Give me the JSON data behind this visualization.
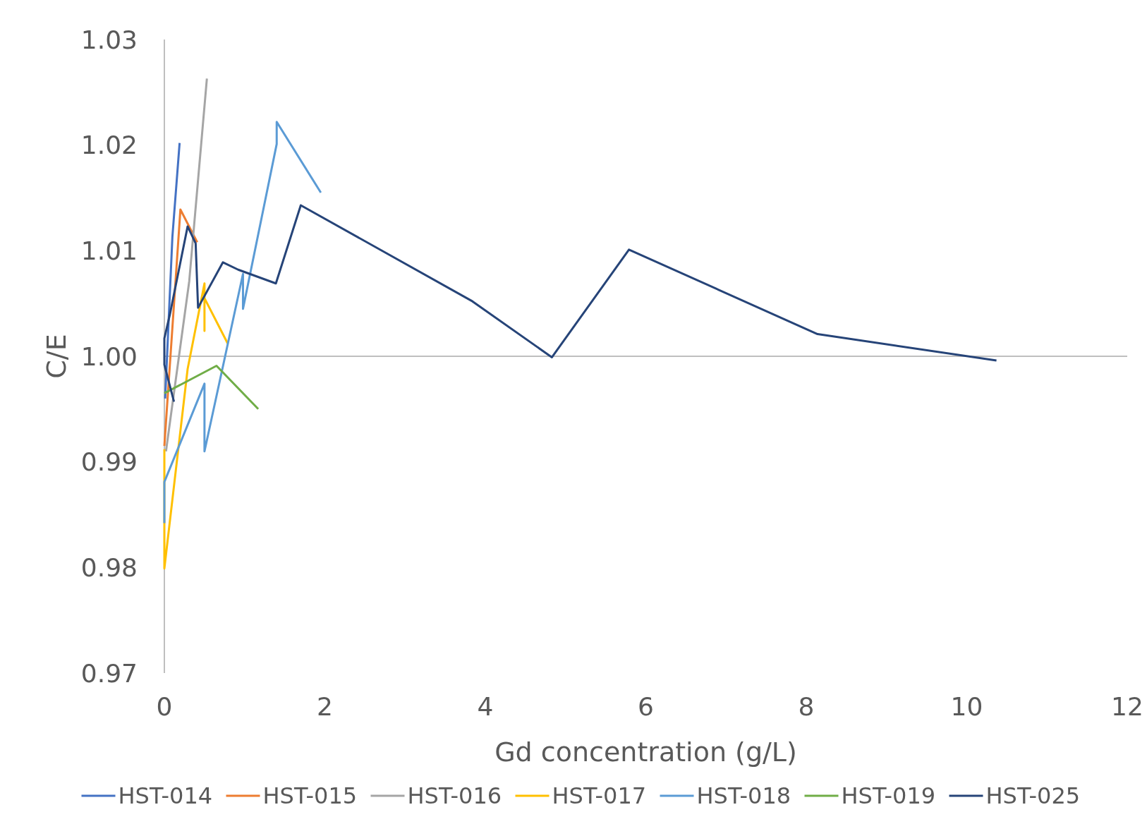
{
  "chart_data": {
    "type": "line",
    "xlabel": "Gd concentration (g/L)",
    "ylabel": "C/E",
    "xlim": [
      0,
      12
    ],
    "xticks": [
      0,
      2,
      4,
      6,
      8,
      10,
      12
    ],
    "ylim": [
      0.97,
      1.03
    ],
    "yticks": [
      {
        "value": 0.97,
        "label": "0.97"
      },
      {
        "value": 0.98,
        "label": "0.98"
      },
      {
        "value": 0.99,
        "label": "0.99"
      },
      {
        "value": 1,
        "label": "1.00"
      },
      {
        "value": 1.01,
        "label": "1.01"
      },
      {
        "value": 1.02,
        "label": "1.02"
      },
      {
        "value": 1.03,
        "label": "1.03"
      }
    ],
    "grid": false,
    "legend": "bottom",
    "marker": "none",
    "line_style": "solid",
    "ref_lines": [
      {
        "axis": "y",
        "value": 1,
        "color": "#bfbfbf"
      }
    ],
    "series": [
      {
        "name": "HST-014",
        "color": "#4472c4",
        "x": [
          0.01,
          0.1,
          0.19
        ],
        "values": [
          0.996,
          1.0113,
          1.0202
        ]
      },
      {
        "name": "HST-015",
        "color": "#ed7d31",
        "x": [
          0,
          0.2,
          0.41
        ],
        "values": [
          0.9915,
          1.0139,
          1.0108
        ]
      },
      {
        "name": "HST-016",
        "color": "#a5a5a5",
        "x": [
          0.02,
          0.31,
          0.53
        ],
        "values": [
          0.991,
          1.0071,
          1.0263
        ]
      },
      {
        "name": "HST-017",
        "color": "#ffc000",
        "x": [
          0,
          0,
          0,
          0.29,
          0.5,
          0.5,
          0.5,
          0.79
        ],
        "values": [
          0.9912,
          0.9842,
          0.9799,
          0.9988,
          1.0069,
          1.0024,
          1.0055,
          1.0012
        ]
      },
      {
        "name": "HST-018",
        "color": "#5b9bd5",
        "x": [
          0,
          0,
          0.5,
          0.5,
          0.98,
          0.98,
          1.4,
          1.4,
          1.95
        ],
        "values": [
          0.9842,
          0.9881,
          0.9974,
          0.991,
          1.0078,
          1.0045,
          1.0201,
          1.0222,
          1.0155
        ]
      },
      {
        "name": "HST-019",
        "color": "#70ad47",
        "x": [
          0,
          0.65,
          1.17
        ],
        "values": [
          0.9965,
          0.9991,
          0.995
        ]
      },
      {
        "name": "HST-025",
        "color": "#264478",
        "x": [
          0.12,
          0,
          0,
          0.07,
          0.29,
          0.39,
          0.42,
          0.73,
          0.92,
          1.39,
          1.7,
          3.84,
          4.83,
          5.79,
          8.14,
          10.37
        ],
        "values": [
          0.9957,
          0.9992,
          1.0017,
          1.004,
          1.0123,
          1.0107,
          1.0046,
          1.0089,
          1.0082,
          1.0069,
          1.0143,
          1.0052,
          0.9999,
          1.0101,
          1.0021,
          0.9996
        ]
      }
    ]
  }
}
